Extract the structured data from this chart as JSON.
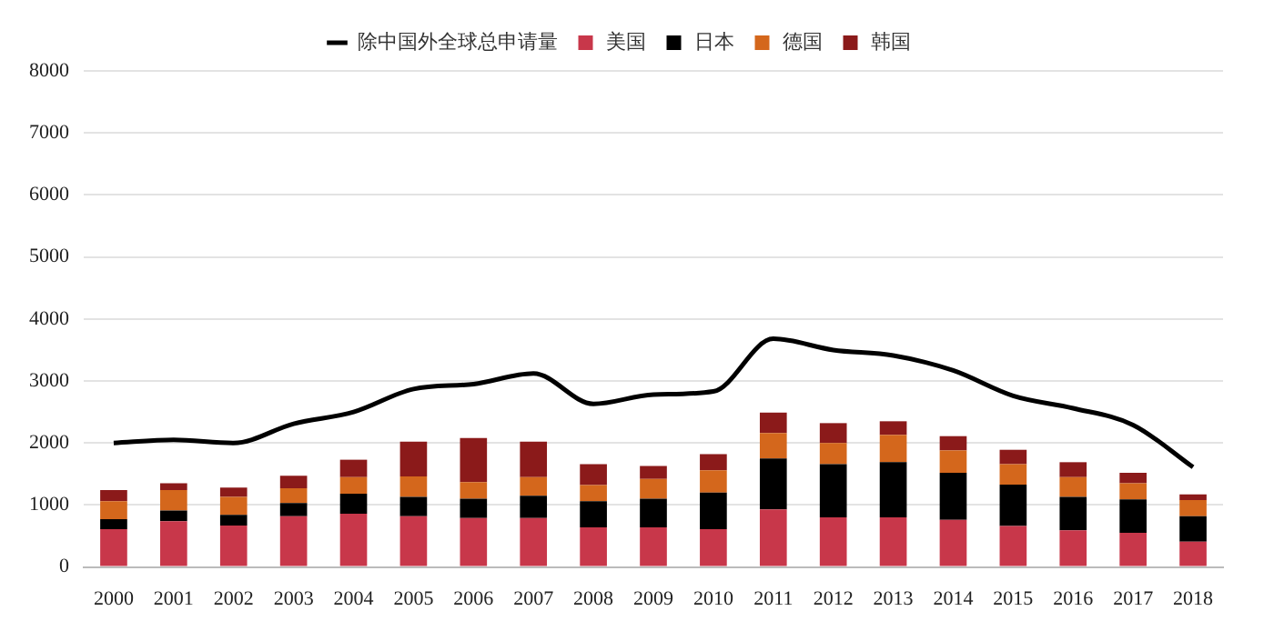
{
  "chart_data": {
    "type": "bar",
    "stacked": true,
    "categories": [
      "2000",
      "2001",
      "2002",
      "2003",
      "2004",
      "2005",
      "2006",
      "2007",
      "2008",
      "2009",
      "2010",
      "2011",
      "2012",
      "2013",
      "2014",
      "2015",
      "2016",
      "2017",
      "2018"
    ],
    "series": [
      {
        "name": "美国",
        "color": "#c8374a",
        "values": [
          610,
          740,
          670,
          820,
          860,
          820,
          790,
          790,
          640,
          640,
          610,
          930,
          800,
          800,
          760,
          660,
          590,
          550,
          410
        ]
      },
      {
        "name": "日本",
        "color": "#000000",
        "values": [
          160,
          170,
          170,
          210,
          320,
          310,
          310,
          360,
          420,
          460,
          590,
          820,
          860,
          890,
          760,
          670,
          540,
          540,
          410
        ]
      },
      {
        "name": "德国",
        "color": "#d4671c",
        "values": [
          290,
          330,
          290,
          240,
          270,
          330,
          270,
          300,
          260,
          320,
          360,
          410,
          340,
          440,
          360,
          330,
          320,
          260,
          260
        ]
      },
      {
        "name": "韩国",
        "color": "#8b1a1a",
        "values": [
          180,
          110,
          150,
          200,
          280,
          560,
          710,
          570,
          340,
          210,
          260,
          330,
          320,
          220,
          230,
          230,
          240,
          170,
          90
        ]
      },
      {
        "name": "除中国外全球总申请量",
        "type": "line",
        "color": "#000000",
        "values": [
          2000,
          2050,
          2000,
          2310,
          2500,
          2870,
          2950,
          3120,
          2630,
          2780,
          2830,
          3680,
          3500,
          3410,
          3170,
          2760,
          2560,
          2290,
          1610
        ]
      }
    ],
    "ylim": [
      0,
      8000
    ],
    "yticks": [
      0,
      1000,
      2000,
      3000,
      4000,
      5000,
      6000,
      7000,
      8000
    ],
    "grid": "y",
    "legend": "top",
    "marker": "none"
  }
}
